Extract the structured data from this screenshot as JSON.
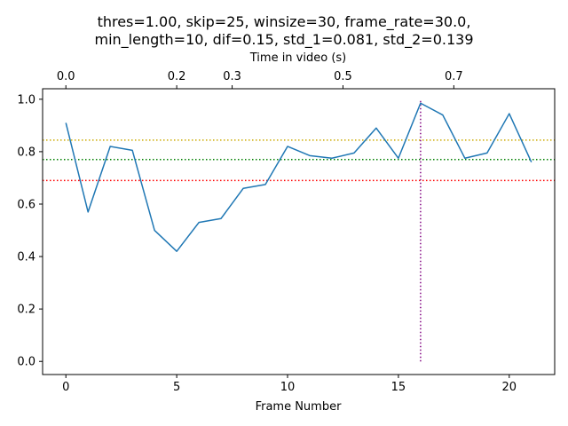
{
  "chart_data": {
    "type": "line",
    "title_line1": "thres=1.00, skip=25, winsize=30, frame_rate=30.0,",
    "title_line2": "min_length=10, dif=0.15, std_1=0.081, std_2=0.139",
    "xlabel": "Frame Number",
    "top_xlabel": "Time in video (s)",
    "xlim": [
      -1.05,
      22.05
    ],
    "ylim": [
      -0.05,
      1.04
    ],
    "x_ticks": [
      0,
      5,
      10,
      15,
      20
    ],
    "x_tick_labels": [
      "0",
      "5",
      "10",
      "15",
      "20"
    ],
    "y_ticks": [
      0.0,
      0.2,
      0.4,
      0.6,
      0.8,
      1.0
    ],
    "y_tick_labels": [
      "0.0",
      "0.2",
      "0.4",
      "0.6",
      "0.8",
      "1.0"
    ],
    "top_ticks_seconds": [
      0.0,
      0.2,
      0.3,
      0.5,
      0.7
    ],
    "top_tick_labels": [
      "0.0",
      "0.2",
      "0.3",
      "0.5",
      "0.7"
    ],
    "frames_per_second_axis": 25,
    "x": [
      0,
      1,
      2,
      3,
      4,
      5,
      6,
      7,
      8,
      9,
      10,
      11,
      12,
      13,
      14,
      15,
      16,
      17,
      18,
      19,
      20,
      21
    ],
    "values": [
      0.91,
      0.57,
      0.82,
      0.805,
      0.5,
      0.42,
      0.53,
      0.545,
      0.66,
      0.675,
      0.82,
      0.785,
      0.775,
      0.795,
      0.89,
      0.775,
      0.985,
      0.94,
      0.775,
      0.795,
      0.945,
      0.76
    ],
    "series_color": "#1f77b4",
    "horizontal_lines": [
      {
        "y": 0.844,
        "color": "#ccaa00",
        "style": "dotted"
      },
      {
        "y": 0.77,
        "color": "#008000",
        "style": "dotted"
      },
      {
        "y": 0.69,
        "color": "#ff0000",
        "style": "dotted"
      }
    ],
    "vertical_line": {
      "x": 16,
      "y_range": [
        0.0,
        1.0
      ],
      "color": "#800080",
      "style": "dotted"
    },
    "grid": false
  }
}
